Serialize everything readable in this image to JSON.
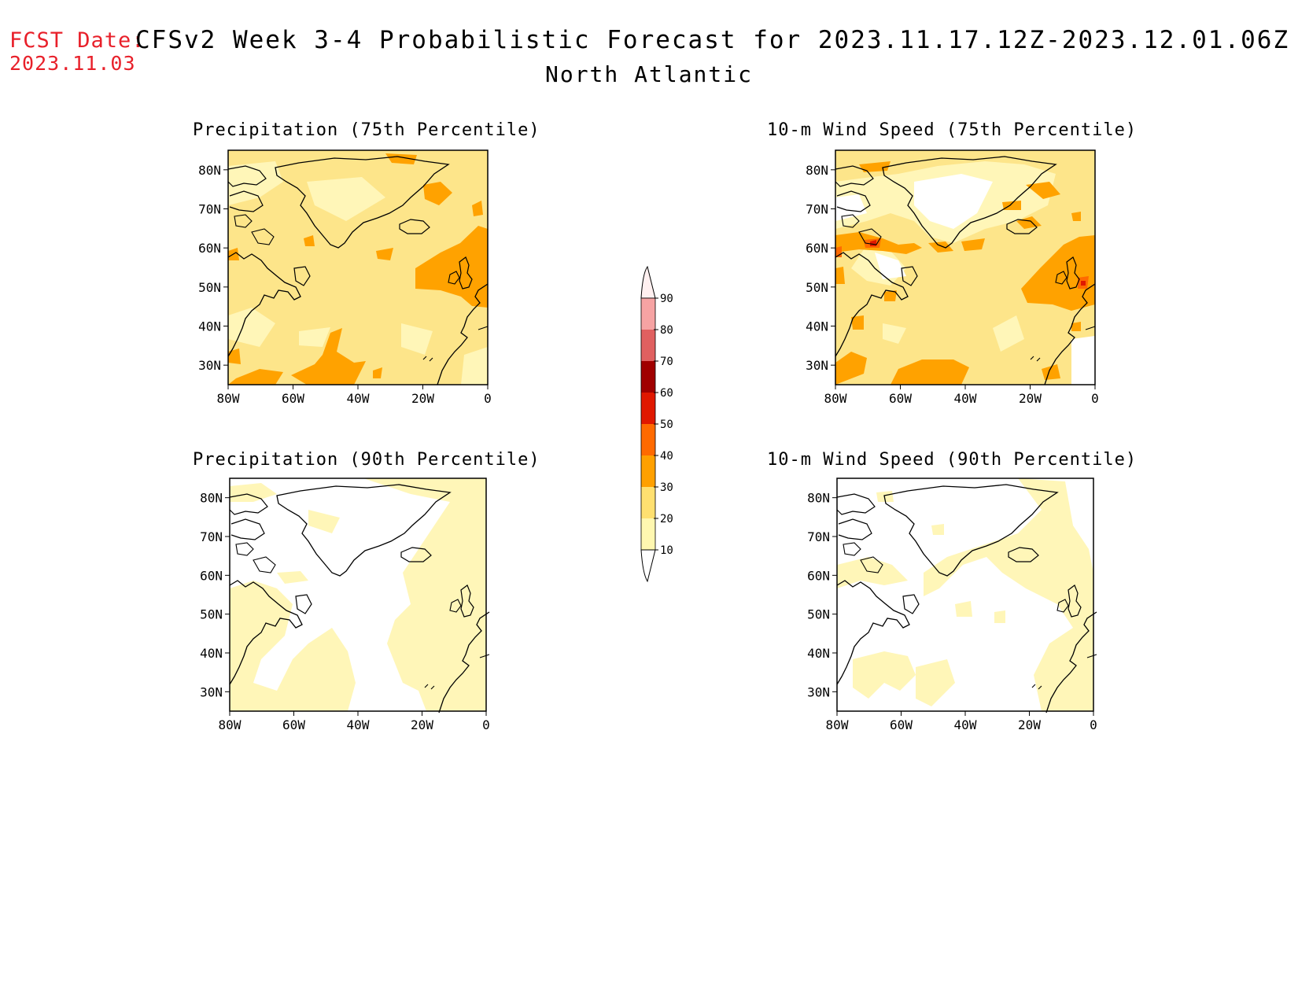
{
  "header": {
    "fcst_label": "FCST Date:",
    "fcst_date": "2023.11.03",
    "title": "CFSv2 Week 3-4 Probabilistic Forecast for 2023.11.17.12Z-2023.12.01.06Z",
    "region": "North Atlantic"
  },
  "panels": [
    {
      "title": "Precipitation (75th Percentile)"
    },
    {
      "title": "10-m Wind Speed (75th Percentile)"
    },
    {
      "title": "Precipitation (90th Percentile)"
    },
    {
      "title": "10-m Wind Speed (90th Percentile)"
    }
  ],
  "axes": {
    "lat_labels": [
      "80N",
      "70N",
      "60N",
      "50N",
      "40N",
      "30N"
    ],
    "lon_labels": [
      "80W",
      "60W",
      "40W",
      "20W",
      "0"
    ]
  },
  "colorbar": {
    "labels": [
      "90",
      "80",
      "70",
      "60",
      "50",
      "40",
      "30",
      "20",
      "10"
    ],
    "colors": [
      "#ffe6e6",
      "#f6a3a3",
      "#e06060",
      "#a00000",
      "#e01800",
      "#ff6a00",
      "#ffa000",
      "#ffe070",
      "#fff7b0"
    ]
  },
  "chart_data": {
    "type": "heatmap",
    "map_extent": {
      "lon": [
        -80,
        0
      ],
      "lat": [
        25,
        85
      ]
    },
    "probability_bins_percent": [
      10,
      20,
      30,
      40,
      50,
      60,
      70,
      80,
      90
    ],
    "panels": [
      {
        "variable": "Precipitation",
        "percentile": "75th",
        "dominant_bin": "20-30",
        "notable": "30-40 patches west of the British Isles, near 30N, and east of Greenland"
      },
      {
        "variable": "10-m Wind Speed",
        "percentile": "75th",
        "dominant_bin": "20-30",
        "notable": "30-40 bands near 60N Labrador Sea, west of British Isles, and near 30N; small 40-50 spots"
      },
      {
        "variable": "Precipitation",
        "percentile": "90th",
        "dominant_bin": "<10 / 10-20",
        "notable": "10-20 across much of the basin"
      },
      {
        "variable": "10-m Wind Speed",
        "percentile": "90th",
        "dominant_bin": "<10",
        "notable": "10-20 patches scattered over ocean"
      }
    ]
  }
}
